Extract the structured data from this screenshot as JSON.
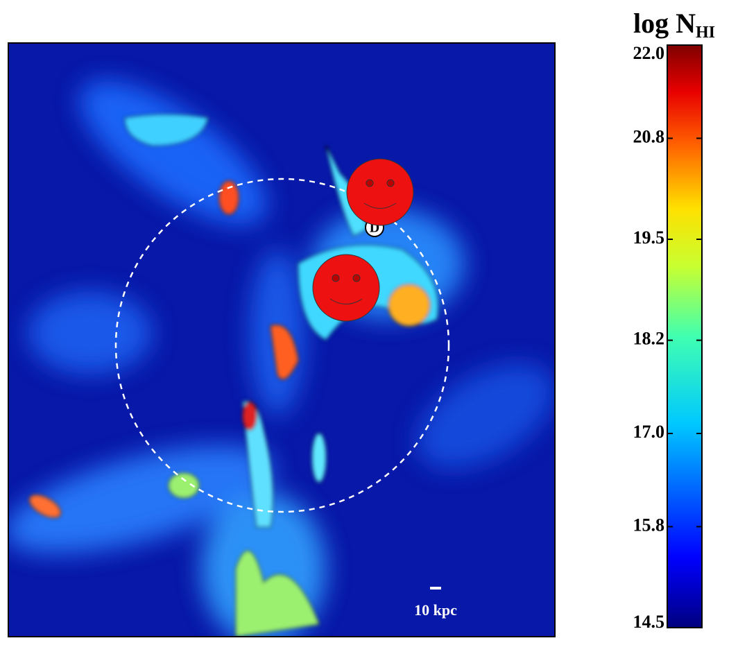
{
  "colorbar": {
    "title": "log N",
    "title_sub": "HI",
    "lim": [
      14.5,
      22
    ],
    "ticks": [
      {
        "value": 22,
        "label": "22.0"
      },
      {
        "value": 20.8,
        "label": "20.8"
      },
      {
        "value": 19.5,
        "label": "19.5"
      },
      {
        "value": 18.2,
        "label": "18.2"
      },
      {
        "value": 17,
        "label": "17.0"
      },
      {
        "value": 15.8,
        "label": "15.8"
      },
      {
        "value": 14.5,
        "label": "14.5"
      }
    ]
  },
  "map": {
    "marker_label": "D",
    "scale_bar_label": "10 kpc"
  }
}
